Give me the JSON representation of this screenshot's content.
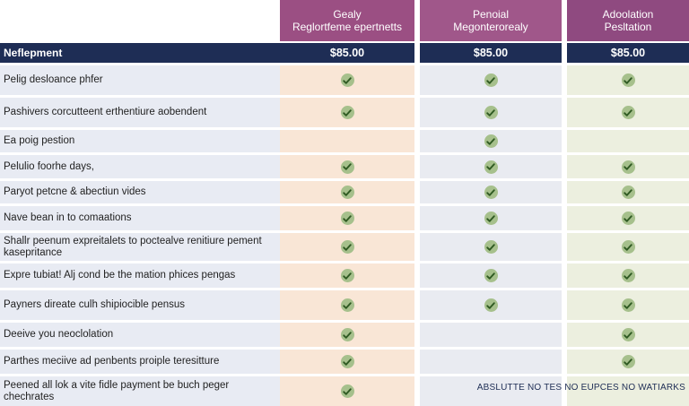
{
  "columns": [
    {
      "name_line1": "Gealy",
      "name_line2": "Reglortfeme epertnetts",
      "price": "$85.00"
    },
    {
      "name_line1": "Penoial",
      "name_line2": "Megonterorealy",
      "price": "$85.00"
    },
    {
      "name_line1": "Adoolation",
      "name_line2": "Pesltation",
      "price": "$85.00"
    }
  ],
  "header_row_label": "Neflepment",
  "rows": [
    {
      "label": "Pelig desloance phfer",
      "checks": [
        true,
        true,
        true
      ],
      "height": 33
    },
    {
      "label": "Pashivers corcutteent erthentiure aobendent",
      "checks": [
        true,
        true,
        true
      ],
      "height": 33
    },
    {
      "label": "Ea poig pestion",
      "checks": [
        false,
        true,
        false
      ],
      "height": 25
    },
    {
      "label": "Pelulio foorhe days,",
      "checks": [
        true,
        true,
        true
      ],
      "height": 26
    },
    {
      "label": "Paryot petcne & abectiun vides",
      "checks": [
        true,
        true,
        true
      ],
      "height": 25
    },
    {
      "label": "Nave bean in to comaations",
      "checks": [
        true,
        true,
        true
      ],
      "height": 27
    },
    {
      "label": "Shallr peenum expreitalets to poctealve renitiure pement kasepritance",
      "checks": [
        true,
        true,
        true
      ],
      "height": 31
    },
    {
      "label": "Expre tubiat! Alj cond be the mation phices pengas",
      "checks": [
        true,
        true,
        true
      ],
      "height": 27
    },
    {
      "label": "Payners direate culh shipiocible pensus",
      "checks": [
        true,
        true,
        true
      ],
      "height": 33
    },
    {
      "label": "Deeive you neoclolation",
      "checks": [
        true,
        false,
        true
      ],
      "height": 27
    },
    {
      "label": "Parthes meciive ad penbents proiple teresitture",
      "checks": [
        true,
        false,
        true
      ],
      "height": 27
    },
    {
      "label": "Peened all lok a vite fidle payment be buch peger chechrates",
      "checks": [
        true,
        false,
        false
      ],
      "height": 33
    }
  ],
  "footer_text": "ABSLUTTE NO TES NO EUPCES NO WATIARKS",
  "icons": {
    "check": "check-circle-icon"
  },
  "colors": {
    "header": "#9b4f83",
    "navy": "#1e2d55",
    "check": "#a6c08c"
  }
}
